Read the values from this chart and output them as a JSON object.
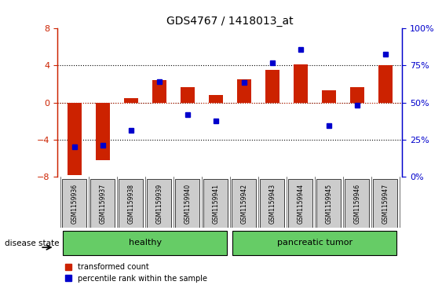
{
  "title": "GDS4767 / 1418013_at",
  "samples": [
    "GSM1159936",
    "GSM1159937",
    "GSM1159938",
    "GSM1159939",
    "GSM1159940",
    "GSM1159941",
    "GSM1159942",
    "GSM1159943",
    "GSM1159944",
    "GSM1159945",
    "GSM1159946",
    "GSM1159947"
  ],
  "red_bars": [
    -7.8,
    -6.2,
    0.5,
    2.4,
    1.7,
    0.8,
    2.5,
    3.5,
    4.1,
    1.3,
    1.7,
    4.0
  ],
  "blue_dots": [
    -4.8,
    -4.6,
    -3.0,
    2.3,
    -1.3,
    -2.0,
    2.2,
    4.3,
    5.7,
    -2.5,
    -0.3,
    5.2
  ],
  "ylim": [
    -8,
    8
  ],
  "y2lim": [
    0,
    100
  ],
  "yticks": [
    -8,
    -4,
    0,
    4,
    8
  ],
  "y2ticks": [
    0,
    25,
    50,
    75,
    100
  ],
  "dotted_lines": [
    -4,
    0,
    4
  ],
  "red_dotted_line": 0,
  "group1_label": "healthy",
  "group1_indices": [
    0,
    1,
    2,
    3,
    4,
    5
  ],
  "group2_label": "pancreatic tumor",
  "group2_indices": [
    6,
    7,
    8,
    9,
    10,
    11
  ],
  "group_color1": "#90EE90",
  "group_color2": "#66CC66",
  "disease_state_label": "disease state",
  "red_color": "#CC2200",
  "blue_color": "#0000CC",
  "bar_width": 0.5,
  "legend_red": "transformed count",
  "legend_blue": "percentile rank within the sample",
  "bg_color": "#FFFFFF",
  "plot_bg": "#FFFFFF",
  "tick_label_bg": "#CCCCCC",
  "yaxis_color_left": "#CC2200",
  "yaxis_color_right": "#0000CC"
}
